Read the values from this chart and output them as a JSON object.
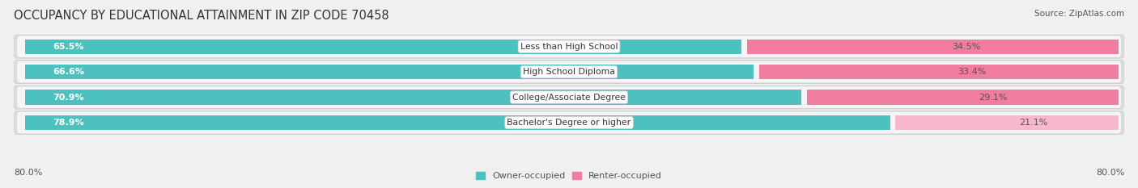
{
  "title": "OCCUPANCY BY EDUCATIONAL ATTAINMENT IN ZIP CODE 70458",
  "source": "Source: ZipAtlas.com",
  "categories": [
    "Less than High School",
    "High School Diploma",
    "College/Associate Degree",
    "Bachelor's Degree or higher"
  ],
  "owner_values": [
    65.5,
    66.6,
    70.9,
    78.9
  ],
  "renter_values": [
    34.5,
    33.4,
    29.1,
    21.1
  ],
  "owner_color": "#4dc0c0",
  "renter_color": "#f07ca0",
  "renter_color_light": "#f8b8cc",
  "owner_label": "Owner-occupied",
  "renter_label": "Renter-occupied",
  "background_color": "#f0f0f0",
  "row_bg_color": "#e8e8e8",
  "title_fontsize": 10.5,
  "source_fontsize": 7.5,
  "label_fontsize": 8.0,
  "bar_height": 0.58,
  "title_color": "#333333",
  "axis_text_color": "#555555",
  "value_text_color_white": "#ffffff",
  "value_text_color_dark": "#555555",
  "category_text_color": "#333333",
  "x_left_label": "80.0%",
  "x_right_label": "80.0%"
}
